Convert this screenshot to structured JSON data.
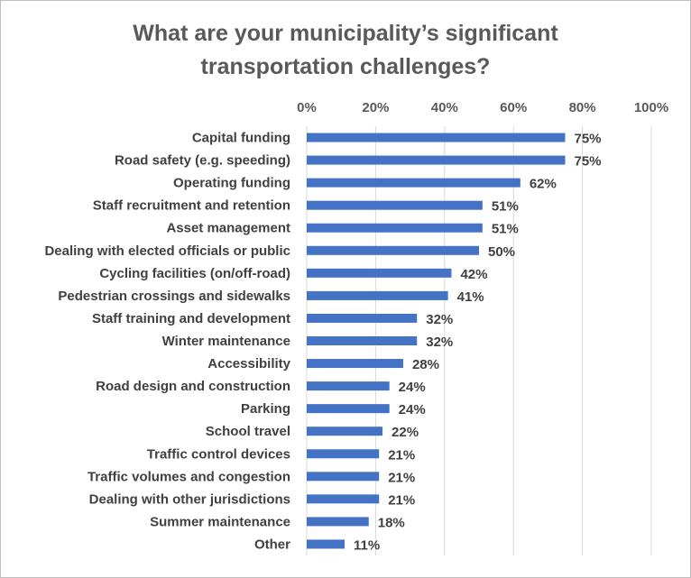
{
  "chart_data": {
    "type": "bar",
    "orientation": "horizontal",
    "title_lines": [
      "What are your municipality’s significant",
      "transportation challenges?"
    ],
    "categories": [
      "Capital funding",
      "Road safety (e.g. speeding)",
      "Operating funding",
      "Staff recruitment and retention",
      "Asset management",
      "Dealing with elected officials or public",
      "Cycling facilities (on/off-road)",
      "Pedestrian crossings and sidewalks",
      "Staff training and development",
      "Winter maintenance",
      "Accessibility",
      "Road design and construction",
      "Parking",
      "School travel",
      "Traffic control devices",
      "Traffic volumes and congestion",
      "Dealing with other jurisdictions",
      "Summer maintenance",
      "Other"
    ],
    "values": [
      75,
      75,
      62,
      51,
      51,
      50,
      42,
      41,
      32,
      32,
      28,
      24,
      24,
      22,
      21,
      21,
      21,
      18,
      11
    ],
    "value_labels": [
      "75%",
      "75%",
      "62%",
      "51%",
      "51%",
      "50%",
      "42%",
      "41%",
      "32%",
      "32%",
      "28%",
      "24%",
      "24%",
      "22%",
      "21%",
      "21%",
      "21%",
      "18%",
      "11%"
    ],
    "xlim": [
      0,
      100
    ],
    "x_ticks": [
      "0%",
      "20%",
      "40%",
      "60%",
      "80%",
      "100%"
    ],
    "x_axis_position": "top",
    "grid": true,
    "legend": "none",
    "bar_color": "#4472c4"
  }
}
